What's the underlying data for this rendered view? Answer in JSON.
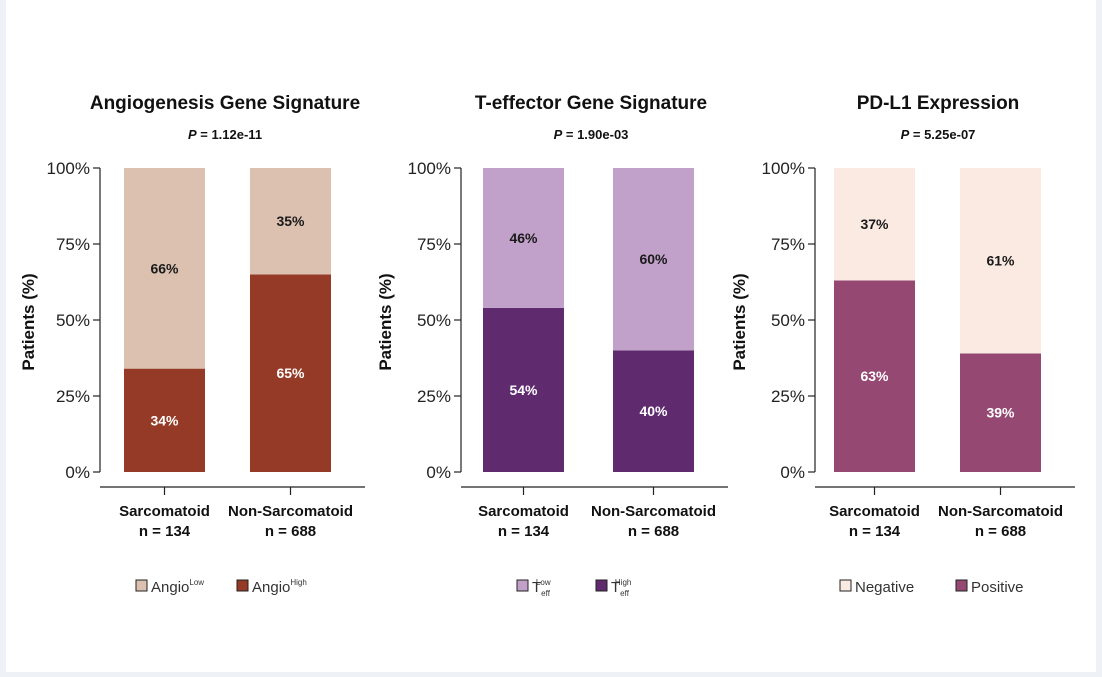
{
  "chart_data": [
    {
      "type": "bar",
      "stacked": true,
      "title": "Angiogenesis Gene Signature",
      "p_label": "P",
      "p_value": " = 1.12e-11",
      "ylabel": "Patients (%)",
      "ylim": [
        0,
        100
      ],
      "yticks": [
        "0%",
        "25%",
        "50%",
        "75%",
        "100%"
      ],
      "categories": [
        {
          "name": "Sarcomatoid",
          "n": "n = 134"
        },
        {
          "name": "Non-Sarcomatoid",
          "n": "n = 688"
        }
      ],
      "series": [
        {
          "name": "Angio",
          "superscript": "High",
          "color": "#943a26",
          "text_color": "#ffffff",
          "values": [
            34,
            65
          ],
          "labels": [
            "34%",
            "65%"
          ]
        },
        {
          "name": "Angio",
          "superscript": "Low",
          "color": "#dcc1b1",
          "text_color": "#1a1a1a",
          "values": [
            66,
            35
          ],
          "labels": [
            "66%",
            "35%"
          ]
        }
      ],
      "legend_order": [
        1,
        0
      ],
      "legend_placement": "bottom",
      "grid": false
    },
    {
      "type": "bar",
      "stacked": true,
      "title": "T-effector Gene Signature",
      "p_label": "P",
      "p_value": " = 1.90e-03",
      "ylabel": "Patients (%)",
      "ylim": [
        0,
        100
      ],
      "yticks": [
        "0%",
        "25%",
        "50%",
        "75%",
        "100%"
      ],
      "categories": [
        {
          "name": "Sarcomatoid",
          "n": "n = 134"
        },
        {
          "name": "Non-Sarcomatoid",
          "n": "n = 688"
        }
      ],
      "series": [
        {
          "name": "T",
          "subscript": "eff",
          "superscript": "High",
          "color": "#5f2a6e",
          "text_color": "#ffffff",
          "values": [
            54,
            40
          ],
          "labels": [
            "54%",
            "40%"
          ]
        },
        {
          "name": "T",
          "subscript": "eff",
          "superscript": "Low",
          "color": "#c1a1ca",
          "text_color": "#1a1a1a",
          "values": [
            46,
            60
          ],
          "labels": [
            "46%",
            "60%"
          ]
        }
      ],
      "legend_order": [
        1,
        0
      ],
      "legend_placement": "bottom",
      "grid": false
    },
    {
      "type": "bar",
      "stacked": true,
      "title": "PD-L1 Expression",
      "p_label": "P",
      "p_value": " = 5.25e-07",
      "ylabel": "Patients (%)",
      "ylim": [
        0,
        100
      ],
      "yticks": [
        "0%",
        "25%",
        "50%",
        "75%",
        "100%"
      ],
      "categories": [
        {
          "name": "Sarcomatoid",
          "n": "n = 134"
        },
        {
          "name": "Non-Sarcomatoid",
          "n": "n = 688"
        }
      ],
      "series": [
        {
          "name": "Positive",
          "color": "#944872",
          "text_color": "#ffffff",
          "values": [
            63,
            39
          ],
          "labels": [
            "63%",
            "39%"
          ]
        },
        {
          "name": "Negative",
          "color": "#fbeae2",
          "text_color": "#1a1a1a",
          "values": [
            37,
            61
          ],
          "labels": [
            "37%",
            "61%"
          ]
        }
      ],
      "legend_order": [
        1,
        0
      ],
      "legend_placement": "bottom",
      "grid": false
    }
  ]
}
